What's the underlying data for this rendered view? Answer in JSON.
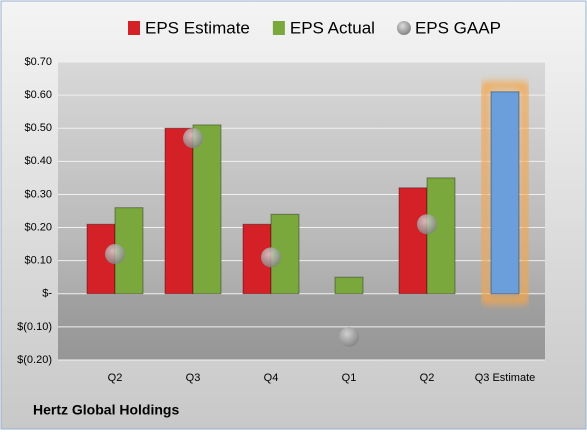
{
  "chart_data": {
    "type": "bar",
    "categories": [
      "Q2",
      "Q3",
      "Q4",
      "Q1",
      "Q2",
      "Q3 Estimate"
    ],
    "series": [
      {
        "name": "EPS Estimate",
        "color": "#d42027",
        "values": [
          0.21,
          0.5,
          0.21,
          null,
          0.32,
          0.61
        ]
      },
      {
        "name": "EPS Actual",
        "color": "#7aa83c",
        "values": [
          0.26,
          0.51,
          0.24,
          0.05,
          0.35,
          null
        ]
      },
      {
        "name": "EPS GAAP",
        "color": "#9a9a9a",
        "marker": "circle",
        "values": [
          0.12,
          0.47,
          0.11,
          -0.13,
          0.21,
          null
        ]
      }
    ],
    "highlight": {
      "color": "#6a9fdc",
      "glow": "#f5a64a"
    },
    "ylim": [
      -0.2,
      0.7
    ],
    "yticks": [
      {
        "value": -0.2,
        "label": "$(0.20)"
      },
      {
        "value": -0.1,
        "label": "$(0.10)"
      },
      {
        "value": 0,
        "label": "$-"
      },
      {
        "value": 0.1,
        "label": "$0.10"
      },
      {
        "value": 0.2,
        "label": "$0.20"
      },
      {
        "value": 0.3,
        "label": "$0.30"
      },
      {
        "value": 0.4,
        "label": "$0.40"
      },
      {
        "value": 0.5,
        "label": "$0.50"
      },
      {
        "value": 0.6,
        "label": "$0.60"
      },
      {
        "value": 0.7,
        "label": "$0.70"
      }
    ],
    "grid": true,
    "footer": "Hertz Global Holdings"
  }
}
